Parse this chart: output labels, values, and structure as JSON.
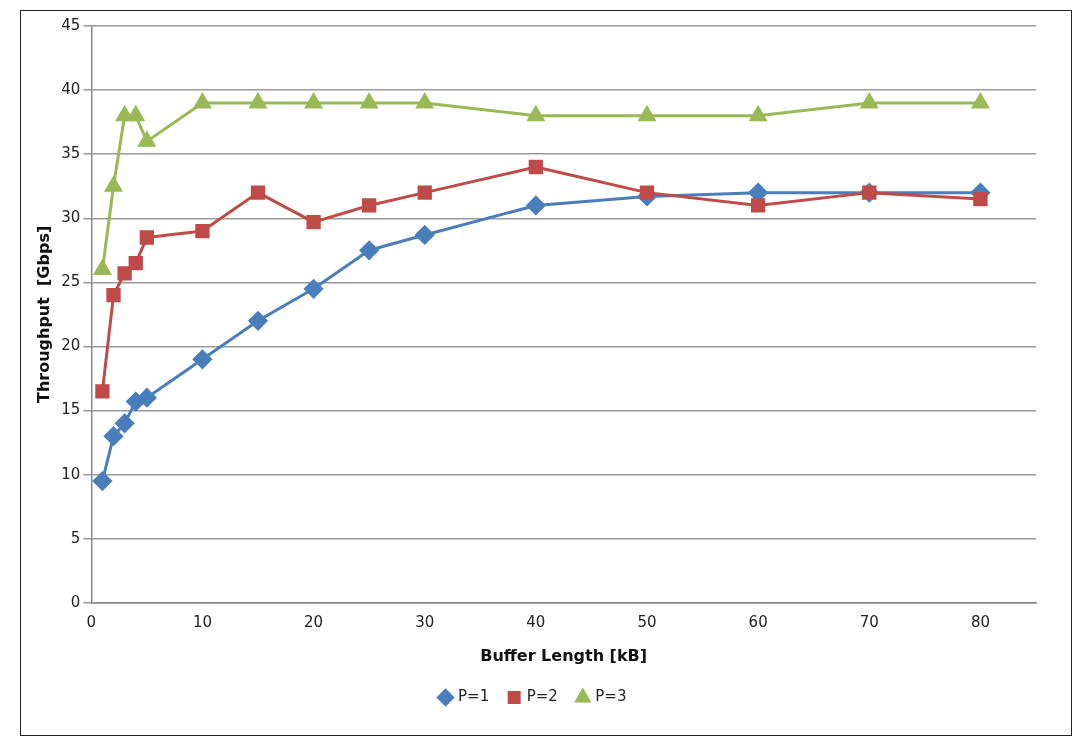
{
  "chart_data": {
    "type": "line",
    "xlabel": "Buffer Length [kB]",
    "ylabel": "Throughput  [Gbps]",
    "x": [
      1,
      2,
      3,
      4,
      5,
      10,
      15,
      20,
      25,
      30,
      40,
      50,
      60,
      70,
      80
    ],
    "series": [
      {
        "name": "P=1",
        "color": "#4a7ebb",
        "marker": "diamond",
        "values": [
          9.5,
          13,
          14,
          15.7,
          16,
          19,
          22,
          24.5,
          27.5,
          28.7,
          31,
          31.7,
          32,
          32,
          32
        ]
      },
      {
        "name": "P=2",
        "color": "#be4b48",
        "marker": "square",
        "values": [
          16.5,
          24,
          25.7,
          26.5,
          28.5,
          29,
          32,
          29.7,
          31,
          32,
          34,
          32,
          31,
          32,
          31.5
        ]
      },
      {
        "name": "P=3",
        "color": "#98b954",
        "marker": "triangle",
        "values": [
          26,
          32.5,
          38,
          38,
          36,
          39,
          39,
          39,
          39,
          39,
          38,
          38,
          38,
          39,
          39
        ]
      }
    ],
    "xlim": [
      0,
      85
    ],
    "xticks": [
      0,
      10,
      20,
      30,
      40,
      50,
      60,
      70,
      80
    ],
    "ylim": [
      0,
      45
    ],
    "yticks": [
      0,
      5,
      10,
      15,
      20,
      25,
      30,
      35,
      40,
      45
    ],
    "grid": "y",
    "legend": "bottom",
    "line_style": "solid"
  }
}
